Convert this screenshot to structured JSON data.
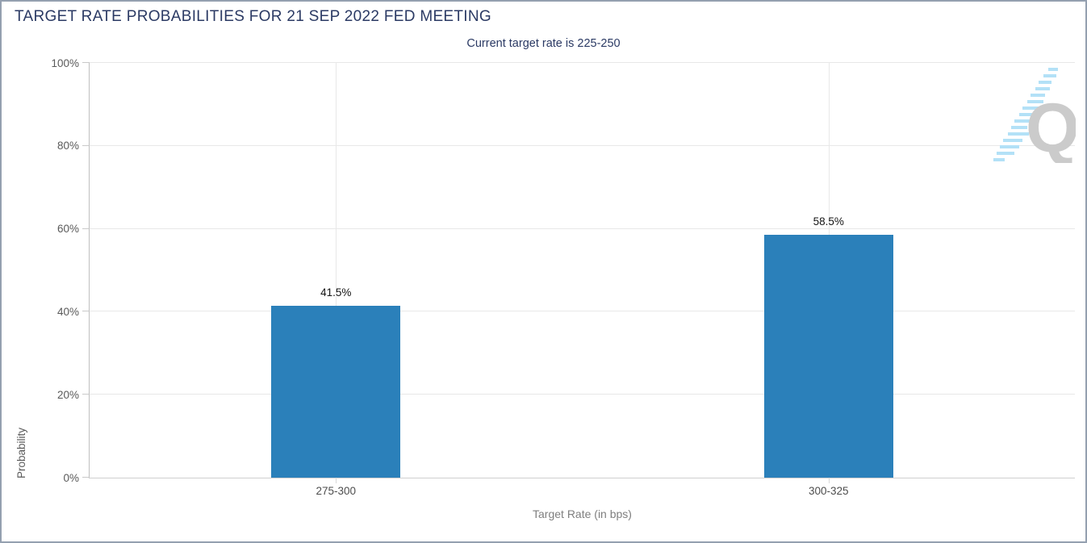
{
  "window": {
    "border_color": "#94a0b0",
    "background": "#ffffff"
  },
  "chart_data": {
    "type": "bar",
    "title": "TARGET RATE PROBABILITIES FOR 21 SEP 2022 FED MEETING",
    "subtitle": "Current target rate is 225-250",
    "categories": [
      "275-300",
      "300-325"
    ],
    "values": [
      41.5,
      58.5
    ],
    "data_labels": [
      "41.5%",
      "58.5%"
    ],
    "xlabel": "Target Rate (in bps)",
    "ylabel": "Probability",
    "ylim": [
      0,
      100
    ],
    "ytick_step": 20,
    "ytick_labels": [
      "0%",
      "20%",
      "40%",
      "60%",
      "80%",
      "100%"
    ],
    "grid": true,
    "legend": false,
    "bar_color": "#2b80ba",
    "title_color": "#2b3a64",
    "subtitle_color": "#2b3a64",
    "axis_text_color": "#595959",
    "gridline_color": "#e8e8e8"
  },
  "watermark": {
    "letter": "Q",
    "letter_color": "#cbcbcb",
    "stripe_color": "#b3e1f7"
  }
}
